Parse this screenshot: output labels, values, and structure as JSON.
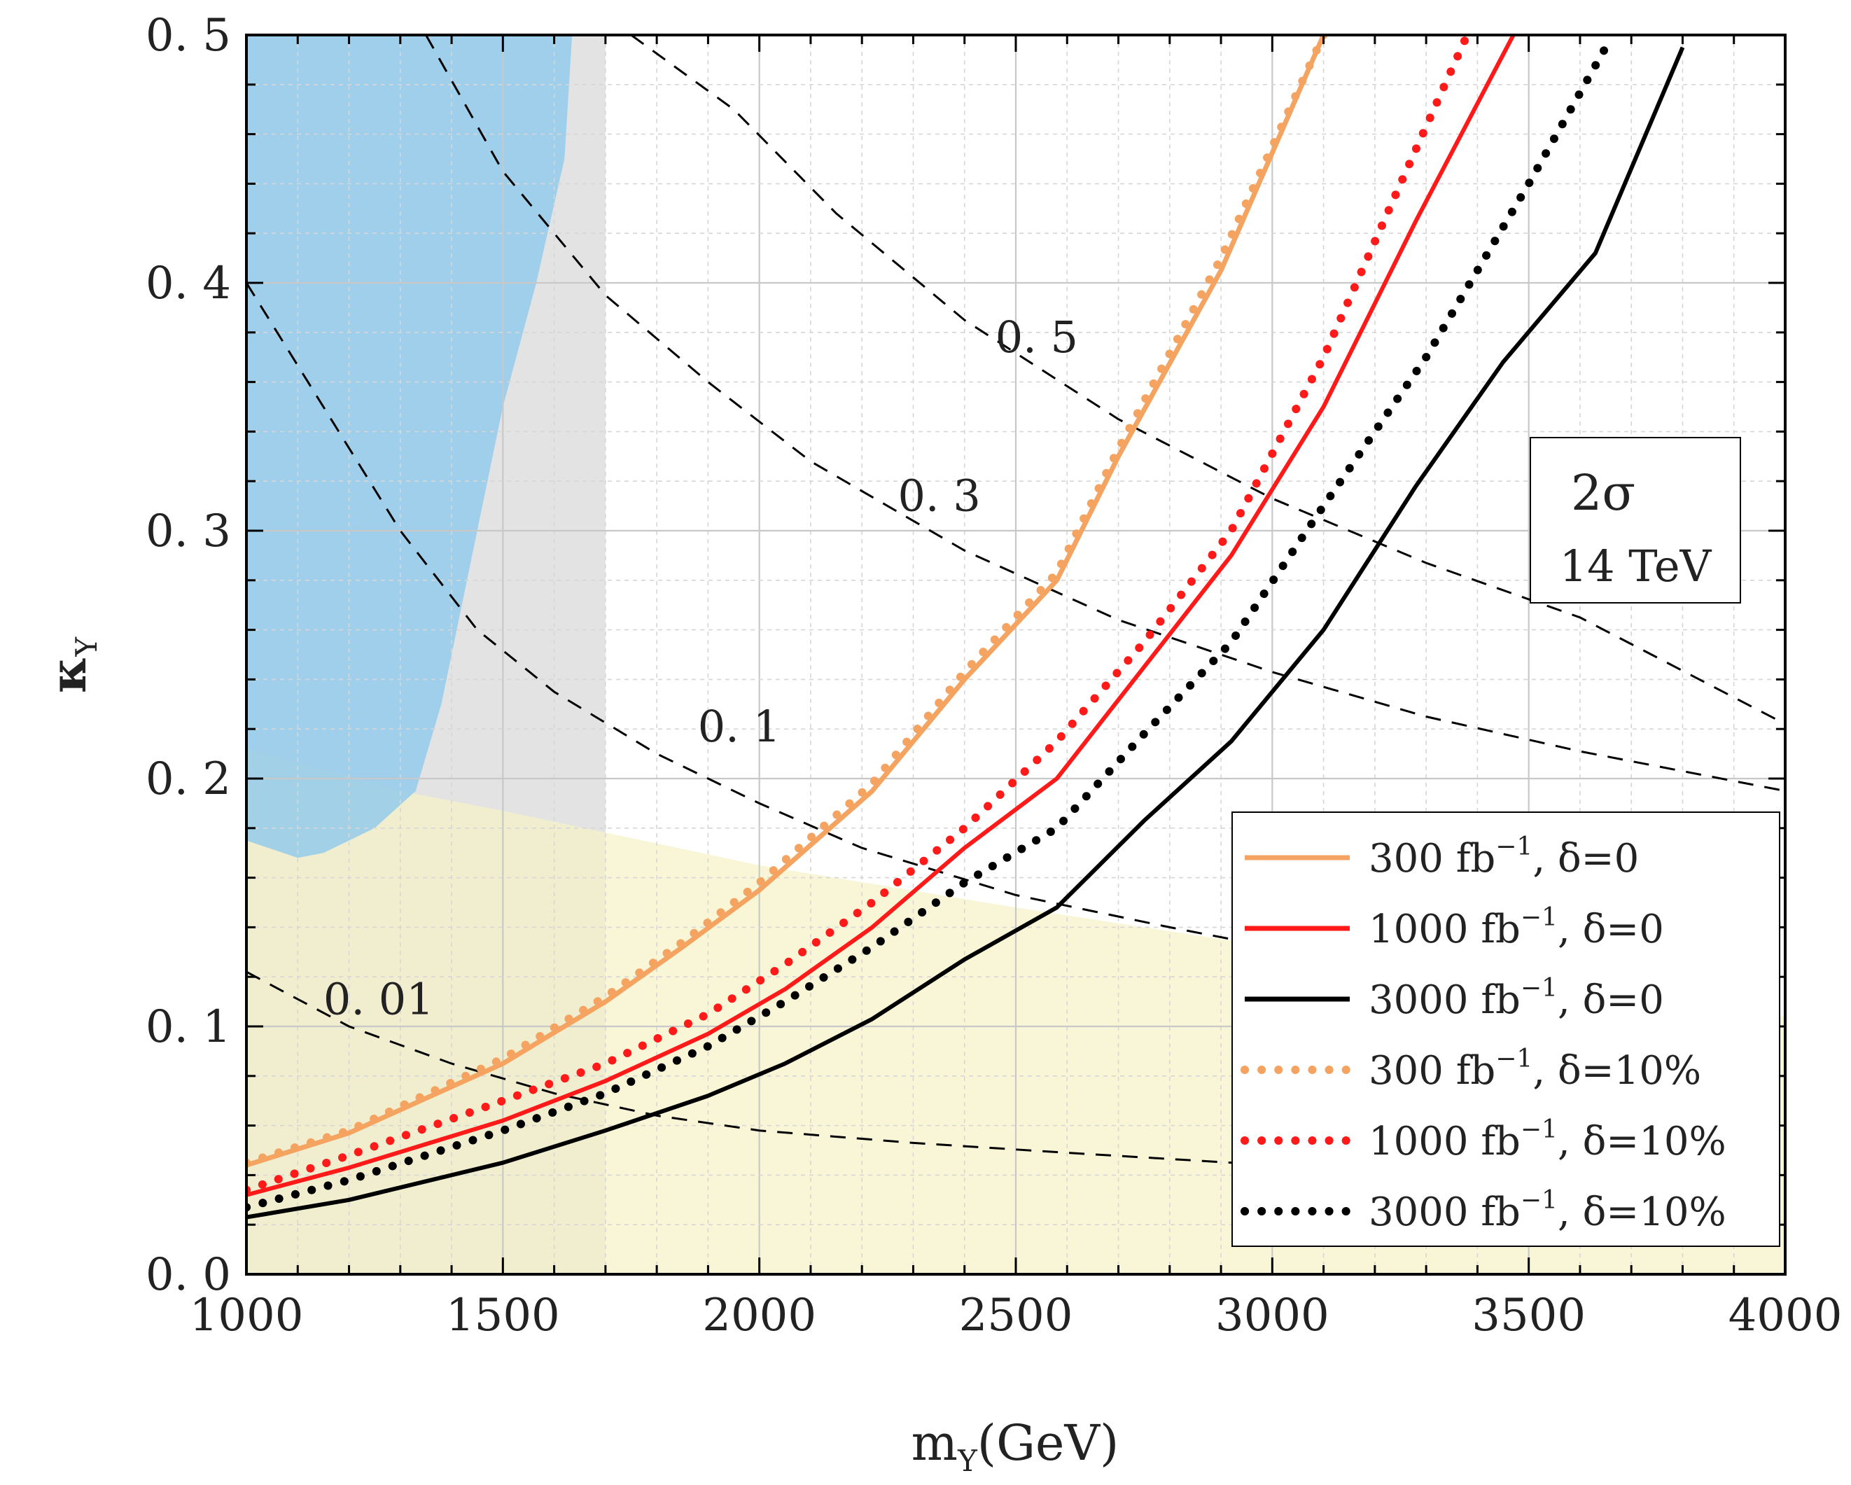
{
  "chart_data": {
    "type": "line",
    "title": "",
    "xlabel": "m",
    "xlabel_sub": "Y",
    "xlabel_unit": "(GeV)",
    "ylabel": "κ",
    "ylabel_sub": "Y",
    "xlim": [
      1000,
      4000
    ],
    "ylim": [
      0.0,
      0.5
    ],
    "x_ticks": [
      1000,
      1500,
      2000,
      2500,
      3000,
      3500,
      4000
    ],
    "x_tick_labels": [
      "1000",
      "1500",
      "2000",
      "2500",
      "3000",
      "3500",
      "4000"
    ],
    "y_ticks": [
      0.0,
      0.1,
      0.2,
      0.3,
      0.4,
      0.5
    ],
    "y_tick_labels": [
      "0. 0",
      "0. 1",
      "0. 2",
      "0. 3",
      "0. 4",
      "0. 5"
    ],
    "grid": true,
    "legend_position": "bottom-right",
    "annotation": {
      "line1": "2σ",
      "line2": "14 TeV"
    },
    "colors": {
      "orange": "#f4a460",
      "red": "#ff1a1a",
      "black": "#000000",
      "blue_region": "#8ec9ec",
      "gray_region": "#d9d9d9",
      "yellow_region": "#f7f2c6"
    },
    "regions": [
      {
        "name": "gray-excluded",
        "points": [
          [
            1000,
            0.0
          ],
          [
            1700,
            0.0
          ],
          [
            1700,
            0.5
          ],
          [
            1000,
            0.5
          ]
        ]
      },
      {
        "name": "yellow-excluded",
        "points": [
          [
            1000,
            0.0
          ],
          [
            1000,
            0.212
          ],
          [
            1300,
            0.195
          ],
          [
            1500,
            0.187
          ],
          [
            2000,
            0.165
          ],
          [
            2500,
            0.148
          ],
          [
            3000,
            0.132
          ],
          [
            3500,
            0.118
          ],
          [
            4000,
            0.104
          ],
          [
            4000,
            0.0
          ]
        ]
      },
      {
        "name": "blue-excluded",
        "points": [
          [
            1000,
            0.5
          ],
          [
            1635,
            0.5
          ],
          [
            1620,
            0.45
          ],
          [
            1565,
            0.4
          ],
          [
            1500,
            0.35
          ],
          [
            1460,
            0.31
          ],
          [
            1430,
            0.28
          ],
          [
            1380,
            0.23
          ],
          [
            1330,
            0.195
          ],
          [
            1250,
            0.18
          ],
          [
            1150,
            0.17
          ],
          [
            1100,
            0.168
          ],
          [
            1000,
            0.175
          ]
        ]
      }
    ],
    "contours": [
      {
        "label": "0. 01",
        "label_at": [
          1150,
          0.105
        ],
        "points": [
          [
            1000,
            0.122
          ],
          [
            1200,
            0.1
          ],
          [
            1400,
            0.085
          ],
          [
            1600,
            0.073
          ],
          [
            1800,
            0.064
          ],
          [
            2000,
            0.058
          ],
          [
            2300,
            0.053
          ],
          [
            2600,
            0.049
          ],
          [
            3000,
            0.044
          ]
        ]
      },
      {
        "label": "0. 1",
        "label_at": [
          1880,
          0.215
        ],
        "points": [
          [
            1000,
            0.4
          ],
          [
            1150,
            0.35
          ],
          [
            1300,
            0.3
          ],
          [
            1450,
            0.26
          ],
          [
            1600,
            0.235
          ],
          [
            1800,
            0.21
          ],
          [
            2000,
            0.19
          ],
          [
            2200,
            0.172
          ],
          [
            2500,
            0.153
          ],
          [
            2800,
            0.14
          ],
          [
            3100,
            0.128
          ]
        ]
      },
      {
        "label": "0. 3",
        "label_at": [
          2270,
          0.308
        ],
        "points": [
          [
            1350,
            0.5
          ],
          [
            1500,
            0.445
          ],
          [
            1700,
            0.395
          ],
          [
            1900,
            0.36
          ],
          [
            2100,
            0.328
          ],
          [
            2400,
            0.292
          ],
          [
            2700,
            0.264
          ],
          [
            3000,
            0.243
          ],
          [
            3300,
            0.225
          ],
          [
            3600,
            0.211
          ],
          [
            4000,
            0.195
          ]
        ]
      },
      {
        "label": "0. 5",
        "label_at": [
          2460,
          0.372
        ],
        "points": [
          [
            1750,
            0.5
          ],
          [
            1950,
            0.47
          ],
          [
            2150,
            0.428
          ],
          [
            2400,
            0.385
          ],
          [
            2700,
            0.345
          ],
          [
            3000,
            0.313
          ],
          [
            3300,
            0.287
          ],
          [
            3600,
            0.265
          ],
          [
            4000,
            0.222
          ]
        ]
      }
    ],
    "series": [
      {
        "name": "300 fb⁻¹, δ=0",
        "legend_label": "300  fb",
        "legend_sup": "−1",
        "legend_suffix": ",  δ=0",
        "color": "#f4a460",
        "style": "solid",
        "x": [
          1000,
          1200,
          1500,
          1700,
          1850,
          2000,
          2220,
          2400,
          2580,
          2700,
          2900,
          3100
        ],
        "y": [
          0.044,
          0.057,
          0.085,
          0.11,
          0.132,
          0.155,
          0.195,
          0.24,
          0.28,
          0.33,
          0.405,
          0.5
        ]
      },
      {
        "name": "1000 fb⁻¹, δ=0",
        "legend_label": "1000  fb",
        "legend_sup": "−1",
        "legend_suffix": ",  δ=0",
        "color": "#ff1a1a",
        "style": "solid",
        "x": [
          1000,
          1200,
          1500,
          1700,
          1900,
          2050,
          2220,
          2400,
          2580,
          2750,
          2920,
          3100,
          3280,
          3470
        ],
        "y": [
          0.032,
          0.043,
          0.062,
          0.078,
          0.097,
          0.115,
          0.14,
          0.172,
          0.2,
          0.245,
          0.29,
          0.35,
          0.425,
          0.5
        ]
      },
      {
        "name": "3000 fb⁻¹, δ=0",
        "legend_label": "3000  fb",
        "legend_sup": "−1",
        "legend_suffix": ",  δ=0",
        "color": "#000000",
        "style": "solid",
        "x": [
          1000,
          1200,
          1500,
          1700,
          1900,
          2050,
          2220,
          2400,
          2580,
          2750,
          2920,
          3100,
          3280,
          3450,
          3630,
          3800
        ],
        "y": [
          0.023,
          0.03,
          0.045,
          0.058,
          0.072,
          0.085,
          0.103,
          0.127,
          0.148,
          0.183,
          0.215,
          0.26,
          0.318,
          0.368,
          0.412,
          0.495
        ]
      },
      {
        "name": "300 fb⁻¹, δ=10%",
        "legend_label": "300  fb",
        "legend_sup": "−1",
        "legend_suffix": ",  δ=10%",
        "color": "#f4a460",
        "style": "dotted",
        "x": [
          1000,
          1200,
          1500,
          1700,
          1850,
          2000,
          2220,
          2400,
          2580,
          2700,
          2900,
          3100
        ],
        "y": [
          0.045,
          0.058,
          0.087,
          0.112,
          0.134,
          0.158,
          0.198,
          0.243,
          0.283,
          0.333,
          0.41,
          0.5
        ]
      },
      {
        "name": "1000 fb⁻¹, δ=10%",
        "legend_label": "1000  fb",
        "legend_sup": "−1",
        "legend_suffix": ",  δ=10%",
        "color": "#ff1a1a",
        "style": "dotted",
        "x": [
          1000,
          1200,
          1500,
          1700,
          1900,
          2050,
          2220,
          2400,
          2580,
          2750,
          2920,
          3100,
          3250,
          3380
        ],
        "y": [
          0.034,
          0.048,
          0.07,
          0.085,
          0.105,
          0.125,
          0.15,
          0.18,
          0.215,
          0.255,
          0.3,
          0.37,
          0.44,
          0.5
        ]
      },
      {
        "name": "3000 fb⁻¹, δ=10%",
        "legend_label": "3000  fb",
        "legend_sup": "−1",
        "legend_suffix": ",  δ=10%",
        "color": "#000000",
        "style": "dotted",
        "x": [
          1000,
          1200,
          1500,
          1700,
          1900,
          2050,
          2220,
          2400,
          2580,
          2750,
          2920,
          3100,
          3300,
          3500,
          3650
        ],
        "y": [
          0.027,
          0.038,
          0.058,
          0.073,
          0.092,
          0.11,
          0.132,
          0.158,
          0.18,
          0.218,
          0.255,
          0.31,
          0.37,
          0.44,
          0.495
        ]
      }
    ]
  }
}
